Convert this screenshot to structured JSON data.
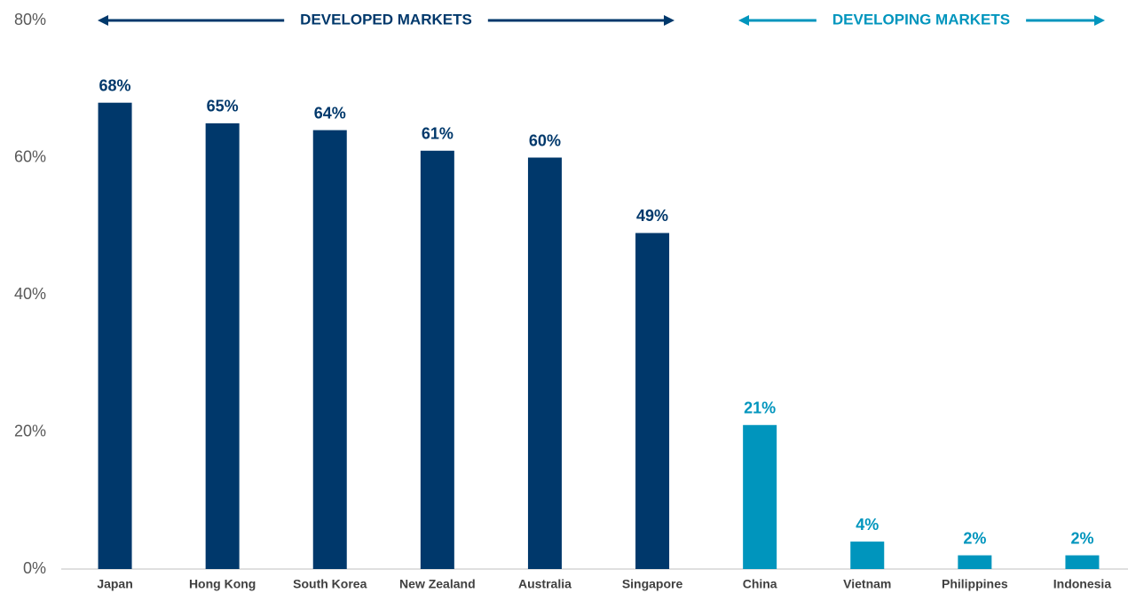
{
  "chart_data": {
    "type": "bar",
    "categories": [
      "Japan",
      "Hong Kong",
      "South Korea",
      "New Zealand",
      "Australia",
      "Singapore",
      "China",
      "Vietnam",
      "Philippines",
      "Indonesia"
    ],
    "values": [
      68,
      65,
      64,
      61,
      60,
      49,
      21,
      4,
      2,
      2
    ],
    "value_labels": [
      "68%",
      "65%",
      "64%",
      "61%",
      "60%",
      "49%",
      "21%",
      "4%",
      "2%",
      "2%"
    ],
    "colors": [
      "#00386b",
      "#00386b",
      "#00386b",
      "#00386b",
      "#00386b",
      "#00386b",
      "#0095bd",
      "#0095bd",
      "#0095bd",
      "#0095bd"
    ],
    "ylim": [
      0,
      80
    ],
    "yticks": [
      {
        "value": 0,
        "label": "0%"
      },
      {
        "value": 20,
        "label": "20%"
      },
      {
        "value": 40,
        "label": "40%"
      },
      {
        "value": 60,
        "label": "60%"
      },
      {
        "value": 80,
        "label": "80%"
      }
    ],
    "grid": false,
    "annotations": [
      {
        "text": "DEVELOPED MARKETS",
        "color": "#00386b"
      },
      {
        "text": "DEVELOPING MARKETS",
        "color": "#0095bd"
      }
    ]
  }
}
